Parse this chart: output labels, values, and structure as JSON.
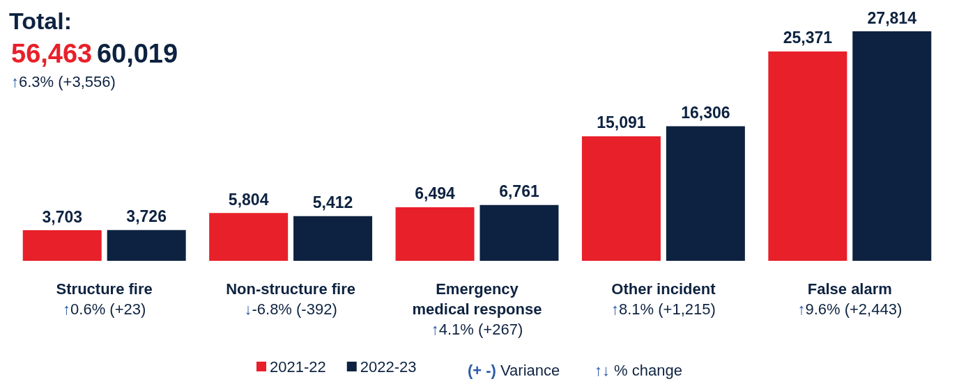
{
  "chart_data": {
    "type": "bar",
    "title": "Total:",
    "categories": [
      "Structure fire",
      "Non-structure fire",
      "Emergency medical response",
      "Other incident",
      "False alarm"
    ],
    "series": [
      {
        "name": "2021-22",
        "color": "#e8202a",
        "values": [
          3703,
          5804,
          6494,
          15091,
          25371
        ],
        "value_labels": [
          "3,703",
          "5,804",
          "6,494",
          "15,091",
          "25,371"
        ]
      },
      {
        "name": "2022-23",
        "color": "#0d2240",
        "values": [
          3726,
          5412,
          6761,
          16306,
          27814
        ],
        "value_labels": [
          "3,726",
          "5,412",
          "6,761",
          "16,306",
          "27,814"
        ]
      }
    ],
    "legend": "bottom",
    "grid": false,
    "annotations": [
      "56,463",
      "60,019",
      "↑6.3% (+3,556)",
      "↑0.6% (+23)",
      "↓-6.8% (-392)",
      "↑4.1% (+267)",
      "↑8.1% (+1,215)",
      "↑9.6% (+2,443)",
      "(+ -) Variance",
      "↑↓ % change"
    ]
  }
}
